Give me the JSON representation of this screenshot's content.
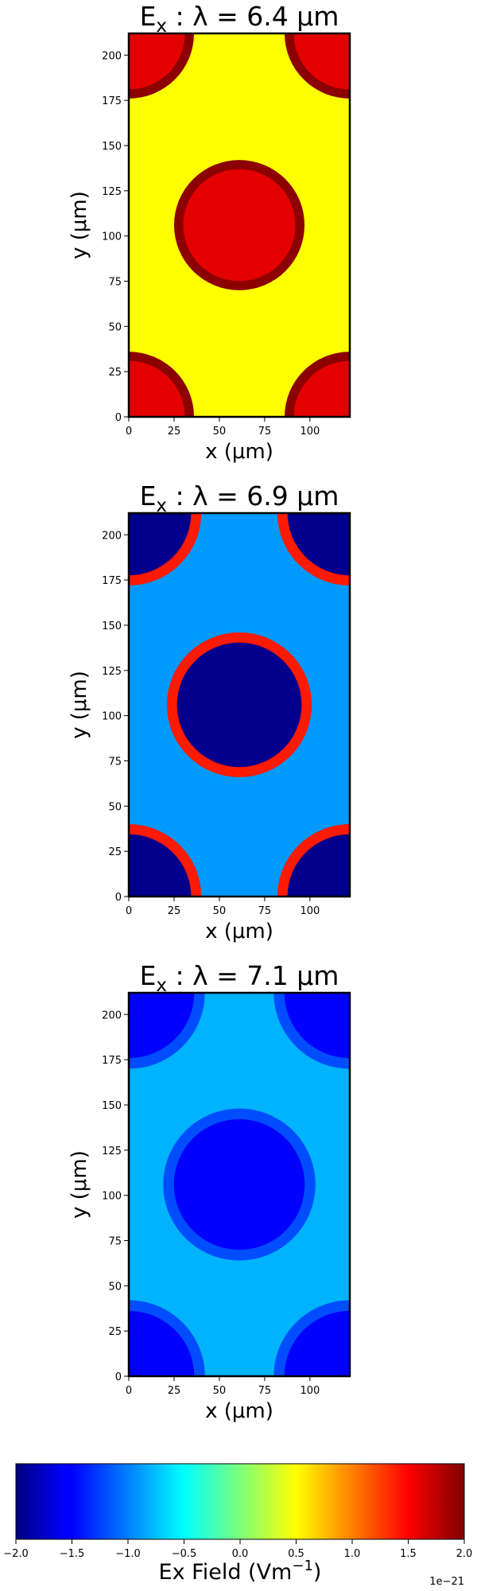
{
  "chart_data": [
    {
      "type": "heatmap",
      "title": "Eₓ : λ = 6.4 μm",
      "title_main": "E",
      "title_sub": "x",
      "title_rest": " :  λ = 6.4 μm",
      "xlabel": "x (μm)",
      "ylabel": "y (μm)",
      "xlim": [
        0,
        122
      ],
      "ylim": [
        0,
        212
      ],
      "xticks": [
        0,
        25,
        50,
        75,
        100
      ],
      "yticks": [
        0,
        25,
        50,
        75,
        100,
        125,
        150,
        175,
        200
      ],
      "background_value": 0.5,
      "features": [
        {
          "kind": "disk",
          "cx": 61,
          "cy": 106,
          "r": 36,
          "value": 1.6,
          "rim": 1.95
        },
        {
          "kind": "disk",
          "cx": 0,
          "cy": 0,
          "r": 36,
          "value": 1.6,
          "rim": 1.95
        },
        {
          "kind": "disk",
          "cx": 122,
          "cy": 0,
          "r": 36,
          "value": 1.6,
          "rim": 1.95
        },
        {
          "kind": "disk",
          "cx": 0,
          "cy": 212,
          "r": 36,
          "value": 1.6,
          "rim": 1.95
        },
        {
          "kind": "disk",
          "cx": 122,
          "cy": 212,
          "r": 36,
          "value": 1.6,
          "rim": 1.95
        }
      ]
    },
    {
      "type": "heatmap",
      "title": "Eₓ : λ = 6.9 μm",
      "title_main": "E",
      "title_sub": "x",
      "title_rest": " :  λ = 6.9 μm",
      "xlabel": "x (μm)",
      "ylabel": "y (μm)",
      "xlim": [
        0,
        122
      ],
      "ylim": [
        0,
        212
      ],
      "xticks": [
        0,
        25,
        50,
        75,
        100
      ],
      "yticks": [
        0,
        25,
        50,
        75,
        100,
        125,
        150,
        175,
        200
      ],
      "background_value": -0.9,
      "features": [
        {
          "kind": "disk",
          "cx": 61,
          "cy": 106,
          "r": 40,
          "value": -1.95,
          "rim": 1.4
        },
        {
          "kind": "disk",
          "cx": 0,
          "cy": 0,
          "r": 40,
          "value": -1.95,
          "rim": 1.4
        },
        {
          "kind": "disk",
          "cx": 122,
          "cy": 0,
          "r": 40,
          "value": -1.95,
          "rim": 1.4
        },
        {
          "kind": "disk",
          "cx": 0,
          "cy": 212,
          "r": 40,
          "value": -1.95,
          "rim": 1.4
        },
        {
          "kind": "disk",
          "cx": 122,
          "cy": 212,
          "r": 40,
          "value": -1.95,
          "rim": 1.4
        }
      ]
    },
    {
      "type": "heatmap",
      "title": "Eₓ : λ = 7.1 μm",
      "title_main": "E",
      "title_sub": "x",
      "title_rest": " :  λ = 7.1 μm",
      "xlabel": "x (μm)",
      "ylabel": "y (μm)",
      "xlim": [
        0,
        122
      ],
      "ylim": [
        0,
        212
      ],
      "xticks": [
        0,
        25,
        50,
        75,
        100
      ],
      "yticks": [
        0,
        25,
        50,
        75,
        100,
        125,
        150,
        175,
        200
      ],
      "background_value": -0.8,
      "features": [
        {
          "kind": "disk",
          "cx": 61,
          "cy": 106,
          "r": 42,
          "value": -1.5,
          "rim": -1.2
        },
        {
          "kind": "disk",
          "cx": 0,
          "cy": 0,
          "r": 42,
          "value": -1.5,
          "rim": -1.2
        },
        {
          "kind": "disk",
          "cx": 122,
          "cy": 0,
          "r": 42,
          "value": -1.5,
          "rim": -1.2
        },
        {
          "kind": "disk",
          "cx": 0,
          "cy": 212,
          "r": 42,
          "value": -1.5,
          "rim": -1.2
        },
        {
          "kind": "disk",
          "cx": 122,
          "cy": 212,
          "r": 42,
          "value": -1.5,
          "rim": -1.2
        }
      ]
    }
  ],
  "colorbar": {
    "colormap": "jet",
    "range": [
      -2.0,
      2.0
    ],
    "ticks": [
      "−2.0",
      "−1.5",
      "−1.0",
      "−0.5",
      "0.0",
      "0.5",
      "1.0",
      "1.5",
      "2.0"
    ],
    "label": "Ex  Field (Vm⁻¹)",
    "label_main": "Ex  Field (Vm",
    "label_sup": "−1",
    "label_end": ")",
    "offset_text": "1e−21"
  }
}
